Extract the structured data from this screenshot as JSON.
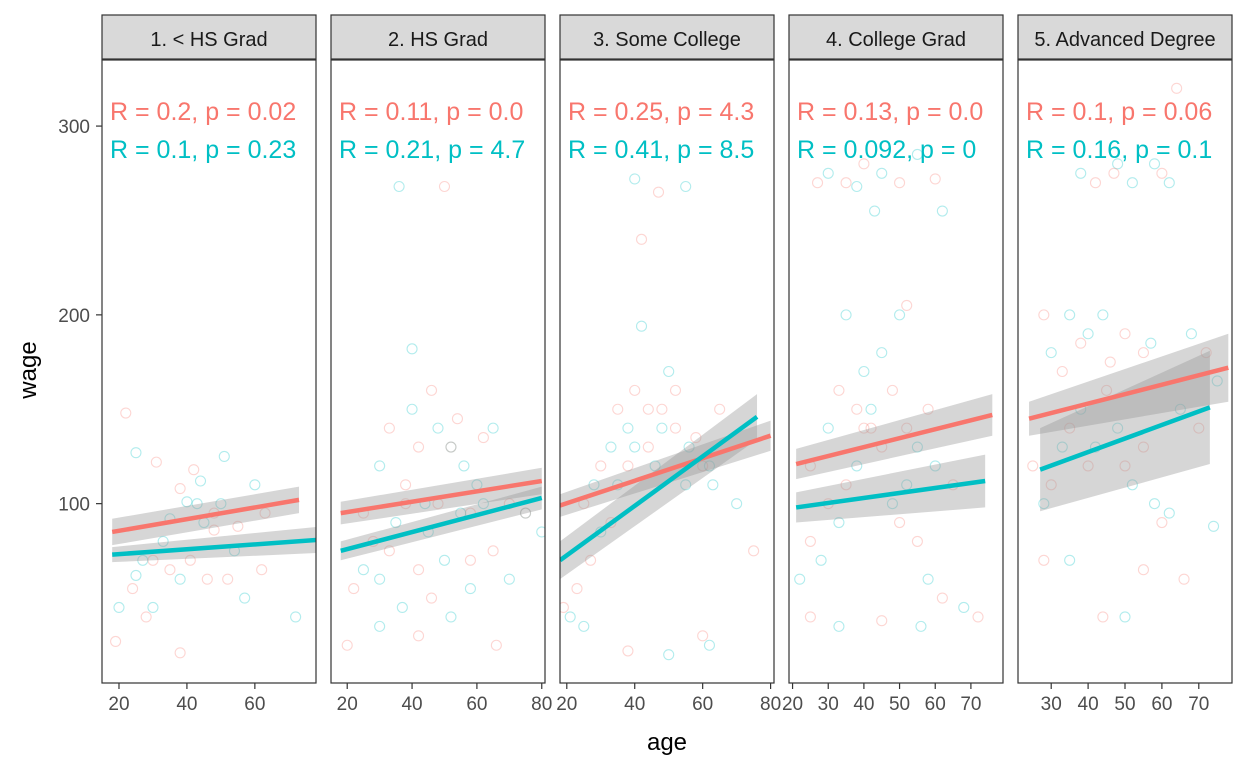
{
  "chart_data": {
    "type": "scatter",
    "xlabel": "age",
    "ylabel": "wage",
    "ylim": [
      5,
      335
    ],
    "y_ticks": [
      100,
      200,
      300
    ],
    "grid": false,
    "colors": {
      "group_a": "#F8766D",
      "group_b": "#00BFC4",
      "band": "#999999",
      "frame": "#333333"
    },
    "panels": [
      {
        "label": "1. < HS Grad",
        "xlim": [
          15,
          78
        ],
        "x_ticks": [
          20,
          40,
          60
        ],
        "r_a": "R = 0.2, p = 0.02",
        "r_b": "R = 0.1, p = 0.23",
        "fit_a": {
          "x": [
            18,
            73
          ],
          "y": [
            85,
            102
          ],
          "se": [
            7,
            7
          ]
        },
        "fit_b": {
          "x": [
            18,
            80
          ],
          "y": [
            73,
            81
          ],
          "se": [
            4,
            7
          ]
        },
        "points": [
          [
            22,
            148
          ],
          [
            25,
            127
          ],
          [
            31,
            122
          ],
          [
            35,
            92
          ],
          [
            38,
            108
          ],
          [
            40,
            101
          ],
          [
            42,
            118
          ],
          [
            44,
            112
          ],
          [
            48,
            95
          ],
          [
            51,
            125
          ],
          [
            55,
            88
          ],
          [
            60,
            110
          ],
          [
            63,
            95
          ],
          [
            20,
            45
          ],
          [
            24,
            55
          ],
          [
            27,
            70
          ],
          [
            30,
            70
          ],
          [
            33,
            80
          ],
          [
            35,
            65
          ],
          [
            38,
            60
          ],
          [
            41,
            70
          ],
          [
            45,
            90
          ],
          [
            48,
            86
          ],
          [
            50,
            100
          ],
          [
            52,
            60
          ],
          [
            57,
            50
          ],
          [
            62,
            65
          ],
          [
            72,
            40
          ],
          [
            19,
            27
          ],
          [
            25,
            62
          ],
          [
            28,
            40
          ],
          [
            30,
            45
          ],
          [
            38,
            21
          ],
          [
            43,
            100
          ],
          [
            46,
            60
          ],
          [
            54,
            75
          ]
        ]
      },
      {
        "label": "2. HS Grad",
        "xlim": [
          15,
          81
        ],
        "x_ticks": [
          20,
          40,
          60,
          80
        ],
        "r_a": "R = 0.11, p = 0.0",
        "r_b": "R = 0.21, p = 4.7",
        "fit_a": {
          "x": [
            18,
            80
          ],
          "y": [
            95,
            112
          ],
          "se": [
            6,
            7
          ]
        },
        "fit_b": {
          "x": [
            18,
            80
          ],
          "y": [
            75,
            103
          ],
          "se": [
            5,
            6
          ]
        },
        "points": [
          [
            25,
            95
          ],
          [
            30,
            120
          ],
          [
            33,
            140
          ],
          [
            36,
            268
          ],
          [
            38,
            110
          ],
          [
            40,
            150
          ],
          [
            42,
            130
          ],
          [
            44,
            100
          ],
          [
            46,
            160
          ],
          [
            48,
            140
          ],
          [
            50,
            268
          ],
          [
            52,
            130
          ],
          [
            54,
            145
          ],
          [
            56,
            120
          ],
          [
            58,
            95
          ],
          [
            60,
            110
          ],
          [
            62,
            135
          ],
          [
            65,
            140
          ],
          [
            70,
            100
          ],
          [
            75,
            95
          ],
          [
            22,
            55
          ],
          [
            25,
            65
          ],
          [
            28,
            80
          ],
          [
            30,
            60
          ],
          [
            33,
            75
          ],
          [
            35,
            90
          ],
          [
            38,
            100
          ],
          [
            40,
            182
          ],
          [
            42,
            65
          ],
          [
            45,
            85
          ],
          [
            48,
            100
          ],
          [
            50,
            70
          ],
          [
            52,
            130
          ],
          [
            55,
            95
          ],
          [
            58,
            70
          ],
          [
            62,
            100
          ],
          [
            65,
            75
          ],
          [
            70,
            60
          ],
          [
            75,
            95
          ],
          [
            80,
            85
          ],
          [
            20,
            25
          ],
          [
            30,
            35
          ],
          [
            42,
            30
          ],
          [
            52,
            40
          ],
          [
            66,
            25
          ],
          [
            37,
            45
          ],
          [
            46,
            50
          ],
          [
            58,
            55
          ]
        ]
      },
      {
        "label": "3. Some College",
        "xlim": [
          18,
          81
        ],
        "x_ticks": [
          20,
          40,
          60,
          80
        ],
        "r_a": "R = 0.25, p = 4.3",
        "r_b": "R = 0.41, p = 8.5",
        "fit_a": {
          "x": [
            18,
            80
          ],
          "y": [
            99,
            136
          ],
          "se": [
            6,
            8
          ]
        },
        "fit_b": {
          "x": [
            18,
            76
          ],
          "y": [
            70,
            146
          ],
          "se": [
            10,
            12
          ]
        },
        "points": [
          [
            25,
            100
          ],
          [
            28,
            110
          ],
          [
            30,
            120
          ],
          [
            33,
            130
          ],
          [
            35,
            150
          ],
          [
            38,
            140
          ],
          [
            40,
            160
          ],
          [
            42,
            194
          ],
          [
            44,
            130
          ],
          [
            46,
            120
          ],
          [
            48,
            150
          ],
          [
            50,
            170
          ],
          [
            52,
            140
          ],
          [
            55,
            110
          ],
          [
            58,
            135
          ],
          [
            62,
            120
          ],
          [
            65,
            150
          ],
          [
            70,
            100
          ],
          [
            19,
            45
          ],
          [
            21,
            40
          ],
          [
            23,
            55
          ],
          [
            25,
            35
          ],
          [
            27,
            70
          ],
          [
            30,
            85
          ],
          [
            33,
            90
          ],
          [
            35,
            110
          ],
          [
            38,
            120
          ],
          [
            40,
            130
          ],
          [
            44,
            150
          ],
          [
            48,
            140
          ],
          [
            52,
            160
          ],
          [
            56,
            130
          ],
          [
            60,
            120
          ],
          [
            63,
            110
          ],
          [
            75,
            75
          ],
          [
            40,
            272
          ],
          [
            42,
            240
          ],
          [
            55,
            268
          ],
          [
            60,
            30
          ],
          [
            62,
            25
          ],
          [
            38,
            22
          ],
          [
            50,
            20
          ],
          [
            47,
            265
          ]
        ]
      },
      {
        "label": "4. College Grad",
        "xlim": [
          19,
          79
        ],
        "x_ticks": [
          20,
          30,
          40,
          50,
          60,
          70
        ],
        "r_a": "R = 0.13, p = 0.0",
        "r_b": "R = 0.092, p = 0",
        "fit_a": {
          "x": [
            21,
            76
          ],
          "y": [
            121,
            147
          ],
          "se": [
            8,
            11
          ]
        },
        "fit_b": {
          "x": [
            21,
            74
          ],
          "y": [
            98,
            112
          ],
          "se": [
            8,
            14
          ]
        },
        "points": [
          [
            27,
            270
          ],
          [
            30,
            275
          ],
          [
            35,
            270
          ],
          [
            38,
            268
          ],
          [
            40,
            280
          ],
          [
            45,
            275
          ],
          [
            50,
            270
          ],
          [
            55,
            285
          ],
          [
            60,
            272
          ],
          [
            62,
            255
          ],
          [
            25,
            120
          ],
          [
            30,
            140
          ],
          [
            33,
            160
          ],
          [
            35,
            200
          ],
          [
            38,
            150
          ],
          [
            40,
            170
          ],
          [
            42,
            140
          ],
          [
            45,
            180
          ],
          [
            48,
            160
          ],
          [
            50,
            200
          ],
          [
            52,
            140
          ],
          [
            55,
            130
          ],
          [
            58,
            150
          ],
          [
            60,
            120
          ],
          [
            65,
            110
          ],
          [
            22,
            60
          ],
          [
            25,
            80
          ],
          [
            28,
            70
          ],
          [
            30,
            100
          ],
          [
            33,
            90
          ],
          [
            35,
            110
          ],
          [
            38,
            120
          ],
          [
            40,
            140
          ],
          [
            42,
            150
          ],
          [
            45,
            130
          ],
          [
            48,
            100
          ],
          [
            50,
            90
          ],
          [
            52,
            110
          ],
          [
            55,
            80
          ],
          [
            58,
            60
          ],
          [
            62,
            50
          ],
          [
            68,
            45
          ],
          [
            25,
            40
          ],
          [
            33,
            35
          ],
          [
            45,
            38
          ],
          [
            56,
            35
          ],
          [
            72,
            40
          ],
          [
            43,
            255
          ],
          [
            52,
            205
          ]
        ]
      },
      {
        "label": "5. Advanced Degree",
        "xlim": [
          21,
          79
        ],
        "x_ticks": [
          30,
          40,
          50,
          60,
          70
        ],
        "r_a": "R = 0.1, p = 0.06",
        "r_b": "R = 0.16, p = 0.1",
        "fit_a": {
          "x": [
            24,
            78
          ],
          "y": [
            145,
            172
          ],
          "se": [
            9,
            18
          ]
        },
        "fit_b": {
          "x": [
            27,
            73
          ],
          "y": [
            118,
            151
          ],
          "se": [
            22,
            30
          ]
        },
        "points": [
          [
            28,
            200
          ],
          [
            30,
            180
          ],
          [
            33,
            170
          ],
          [
            35,
            200
          ],
          [
            38,
            185
          ],
          [
            40,
            190
          ],
          [
            42,
            270
          ],
          [
            44,
            200
          ],
          [
            46,
            175
          ],
          [
            48,
            280
          ],
          [
            50,
            190
          ],
          [
            52,
            270
          ],
          [
            55,
            180
          ],
          [
            57,
            185
          ],
          [
            60,
            275
          ],
          [
            62,
            270
          ],
          [
            64,
            320
          ],
          [
            68,
            190
          ],
          [
            72,
            180
          ],
          [
            75,
            165
          ],
          [
            25,
            120
          ],
          [
            28,
            100
          ],
          [
            30,
            110
          ],
          [
            33,
            130
          ],
          [
            35,
            140
          ],
          [
            38,
            150
          ],
          [
            40,
            120
          ],
          [
            42,
            130
          ],
          [
            45,
            160
          ],
          [
            48,
            140
          ],
          [
            50,
            120
          ],
          [
            52,
            110
          ],
          [
            55,
            130
          ],
          [
            58,
            100
          ],
          [
            60,
            90
          ],
          [
            65,
            150
          ],
          [
            70,
            140
          ],
          [
            74,
            88
          ],
          [
            28,
            70
          ],
          [
            35,
            70
          ],
          [
            44,
            40
          ],
          [
            50,
            40
          ],
          [
            55,
            65
          ],
          [
            62,
            95
          ],
          [
            66,
            60
          ],
          [
            38,
            275
          ],
          [
            47,
            275
          ],
          [
            58,
            280
          ]
        ]
      }
    ]
  }
}
